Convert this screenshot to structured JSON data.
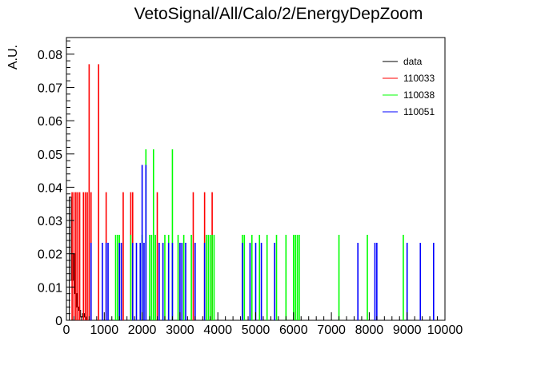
{
  "chart_data": {
    "type": "bar",
    "title": "VetoSignal/All/Calo/2/EnergyDepZoom",
    "xlabel": "",
    "ylabel": "A.U.",
    "xlim": [
      0,
      10000
    ],
    "ylim": [
      0,
      0.085
    ],
    "xticks": [
      "0",
      "1000",
      "2000",
      "3000",
      "4000",
      "5000",
      "6000",
      "7000",
      "8000",
      "9000",
      "10000"
    ],
    "yticks": [
      "0",
      "0.01",
      "0.02",
      "0.03",
      "0.04",
      "0.05",
      "0.06",
      "0.07",
      "0.08"
    ],
    "legend_position": "top-right",
    "series": [
      {
        "name": "data",
        "color": "#000000",
        "style": "histogram-line",
        "x": [
          100,
          150,
          200,
          250,
          300,
          350,
          400,
          450,
          500
        ],
        "values": [
          0.037,
          0.012,
          0.02,
          0.008,
          0.004,
          0.003,
          0.001,
          0.002,
          0.001
        ]
      },
      {
        "name": "110033",
        "color": "#ff0000",
        "x": [
          150,
          200,
          250,
          300,
          350,
          450,
          500,
          550,
          600,
          650,
          850,
          1050,
          1500,
          1700,
          1750,
          2400,
          3350,
          3650,
          3850
        ],
        "values": [
          0.0385,
          0.0385,
          0.0385,
          0.0385,
          0.0385,
          0.0385,
          0.0385,
          0.0385,
          0.077,
          0.0385,
          0.077,
          0.0385,
          0.0385,
          0.0385,
          0.0385,
          0.0385,
          0.0385,
          0.0385,
          0.0385
        ]
      },
      {
        "name": "110038",
        "color": "#00ff00",
        "x": [
          1300,
          1350,
          1400,
          1700,
          2000,
          2100,
          2200,
          2250,
          2300,
          2350,
          2600,
          2700,
          2800,
          2950,
          3100,
          3300,
          3700,
          3750,
          3800,
          3850,
          3900,
          4650,
          4700,
          4900,
          5100,
          5300,
          5550,
          5800,
          6000,
          6050,
          6100,
          6150,
          7200,
          7950,
          8900
        ],
        "values": [
          0.0257,
          0.0257,
          0.0257,
          0.0257,
          0.0257,
          0.0514,
          0.0257,
          0.0257,
          0.0514,
          0.0257,
          0.0257,
          0.0257,
          0.0514,
          0.0257,
          0.0257,
          0.0257,
          0.0257,
          0.0257,
          0.0257,
          0.0257,
          0.0257,
          0.0257,
          0.0257,
          0.0257,
          0.0257,
          0.0257,
          0.0257,
          0.0257,
          0.0257,
          0.0257,
          0.0257,
          0.0257,
          0.0257,
          0.0257,
          0.0257
        ]
      },
      {
        "name": "110051",
        "color": "#0000ff",
        "x": [
          650,
          950,
          1050,
          1100,
          1400,
          1450,
          1750,
          1850,
          1950,
          2000,
          2050,
          2100,
          2450,
          2550,
          2700,
          2800,
          3000,
          3050,
          3150,
          3400,
          3650,
          4650,
          4850,
          5000,
          5150,
          5500,
          7700,
          8150,
          8200,
          9000,
          9350,
          9700
        ],
        "values": [
          0.0233,
          0.0233,
          0.0233,
          0.0233,
          0.0233,
          0.0233,
          0.0233,
          0.0233,
          0.0233,
          0.0467,
          0.0233,
          0.0467,
          0.0233,
          0.0233,
          0.0233,
          0.0233,
          0.0233,
          0.0233,
          0.0233,
          0.0233,
          0.0233,
          0.0233,
          0.0233,
          0.0233,
          0.0233,
          0.0233,
          0.0233,
          0.0233,
          0.0233,
          0.0233,
          0.0233,
          0.0233
        ]
      }
    ]
  }
}
